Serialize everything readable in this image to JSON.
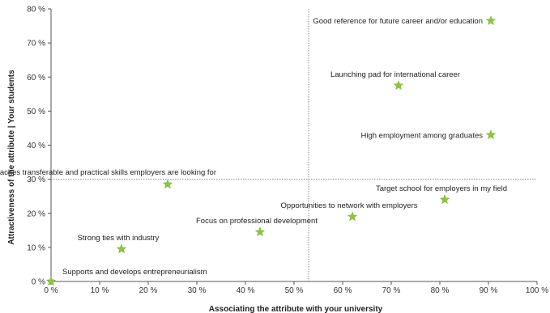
{
  "chart_data": {
    "type": "scatter",
    "xlabel": "Associating the attribute with your university",
    "ylabel": "Attractiveness of the attribute | Your students",
    "xlim": [
      0,
      100
    ],
    "ylim": [
      0,
      80
    ],
    "x_ticks": [
      "0 %",
      "10 %",
      "20 %",
      "30 %",
      "40 %",
      "50 %",
      "60 %",
      "70 %",
      "80 %",
      "90 %",
      "100 %"
    ],
    "y_ticks": [
      "0 %",
      "10 %",
      "20 %",
      "30 %",
      "40 %",
      "50 %",
      "60 %",
      "70 %",
      "80 %"
    ],
    "x_tick_values": [
      0,
      10,
      20,
      30,
      40,
      50,
      60,
      70,
      80,
      90,
      100
    ],
    "y_tick_values": [
      0,
      10,
      20,
      30,
      40,
      50,
      60,
      70,
      80
    ],
    "reference_lines": {
      "x": 53,
      "y": 30
    },
    "marker": "star",
    "marker_color": "#8cc63f",
    "points": [
      {
        "label": "Good reference for future career and/or education",
        "x": 90.5,
        "y": 76.5,
        "label_pos": "left"
      },
      {
        "label": "Launching pad for international career",
        "x": 71.5,
        "y": 57.5,
        "label_pos": "above"
      },
      {
        "label": "High employment among graduates",
        "x": 90.5,
        "y": 43,
        "label_pos": "left"
      },
      {
        "label": "Teaches transferable and practical skills employers are looking for",
        "x": 24,
        "y": 28.5,
        "label_pos": "above-left"
      },
      {
        "label": "Target school for employers in my field",
        "x": 81,
        "y": 24,
        "label_pos": "above"
      },
      {
        "label": "Opportunities to network with employers",
        "x": 62,
        "y": 19,
        "label_pos": "above"
      },
      {
        "label": "Focus on professional development",
        "x": 43,
        "y": 14.5,
        "label_pos": "above"
      },
      {
        "label": "Strong ties with industry",
        "x": 14.5,
        "y": 9.5,
        "label_pos": "above"
      },
      {
        "label": "Supports and develops entrepreneurialism",
        "x": 0,
        "y": 0,
        "label_pos": "above-right"
      }
    ]
  }
}
